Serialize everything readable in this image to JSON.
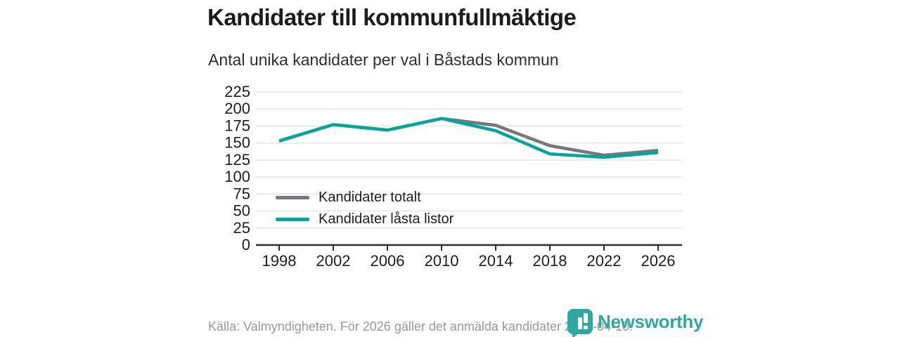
{
  "header": {
    "title": "Kandidater till kommunfullmäktige",
    "subtitle": "Antal unika kandidater per val i Båstads kommun"
  },
  "chart_data": {
    "type": "line",
    "categories": [
      "1998",
      "2002",
      "2006",
      "2010",
      "2014",
      "2018",
      "2022",
      "2026"
    ],
    "series": [
      {
        "name": "Kandidater totalt",
        "color": "#77777b",
        "values": [
          153,
          177,
          169,
          186,
          176,
          146,
          132,
          139
        ]
      },
      {
        "name": "Kandidater låsta listor",
        "color": "#00a79b",
        "values": [
          153,
          177,
          169,
          186,
          168,
          134,
          129,
          136
        ]
      }
    ],
    "title": "Kandidater till kommunfullmäktige",
    "subtitle": "Antal unika kandidater per val i Båstads kommun",
    "xlabel": "",
    "ylabel": "",
    "ylim": [
      0,
      225
    ],
    "ytick_step": 25,
    "yticks": [
      0,
      25,
      50,
      75,
      100,
      125,
      150,
      175,
      200,
      225
    ],
    "grid": true,
    "legend_position": "inside-lower-left"
  },
  "colors": {
    "accent_teal": "#00a79b",
    "series_gray": "#77777b",
    "gridline": "#e2e2e2",
    "axis": "#2e2e2e",
    "text_dark": "#1d1d1d",
    "footer_gray": "#98989d",
    "logo_teal": "#2ea9a2"
  },
  "footer": {
    "source": "Källa: Valmyndigheten. För 2026 gäller det anmälda kandidater 2026-04-10."
  },
  "logo": {
    "text": "Newsworthy",
    "icon": "bar-chart-speech-bubble-icon"
  }
}
